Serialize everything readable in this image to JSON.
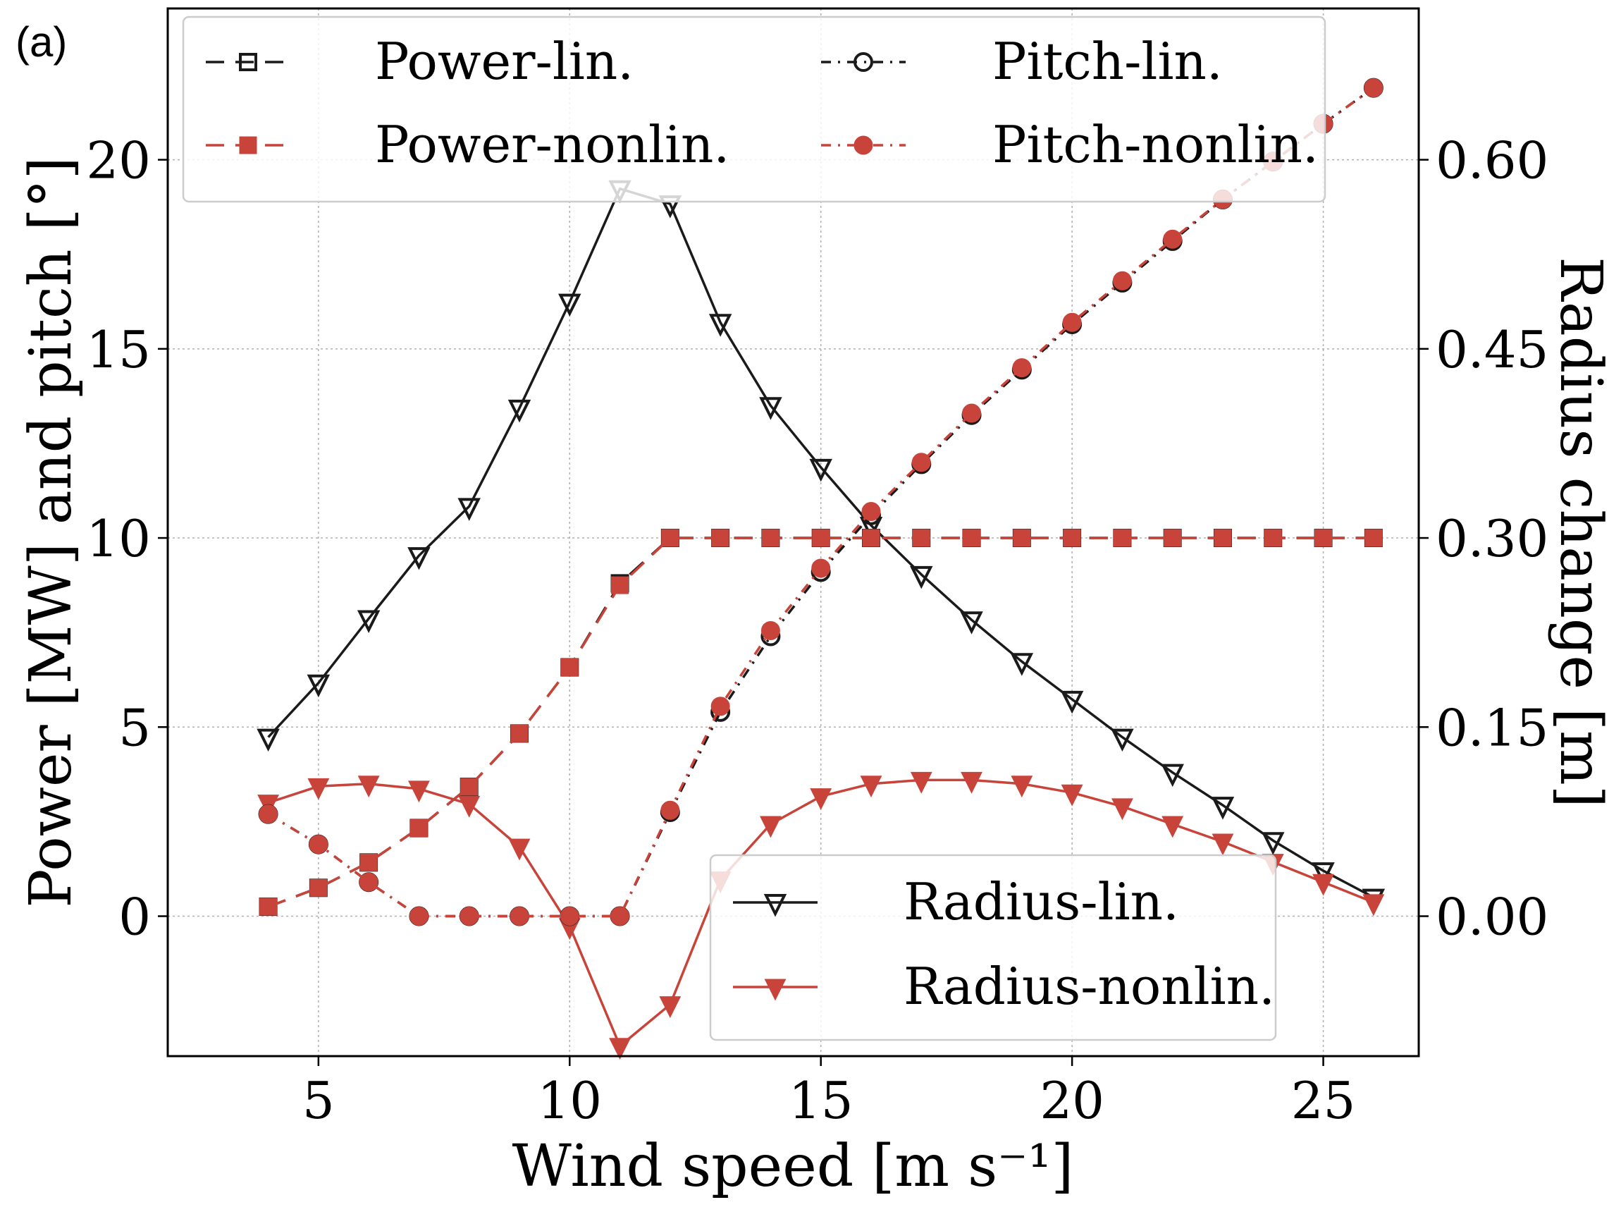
{
  "chart_data": {
    "panel_label": "(a)",
    "type": "line",
    "xlabel": "Wind speed [m s⁻¹]",
    "ylabel_left": "Power [MW] and pitch [°]",
    "ylabel_right": "Radius change [m]",
    "xlim": [
      2.0,
      26.9
    ],
    "ylim_left": [
      -3.7,
      24.0
    ],
    "ylim_right": [
      -0.111,
      0.72
    ],
    "xticks": [
      5,
      10,
      15,
      20,
      25
    ],
    "yticks_left": [
      0,
      5,
      10,
      15,
      20
    ],
    "yticks_right": [
      0.0,
      0.15,
      0.3,
      0.45,
      0.6
    ],
    "yticks_right_labels": [
      "0.00",
      "0.15",
      "0.30",
      "0.45",
      "0.60"
    ],
    "grid": true,
    "legend_top_placement": "top",
    "legend_bottom_placement": "lower-right",
    "colors": {
      "lin": "#1a1a1a",
      "nonlin": "#c8443a"
    },
    "x": [
      4,
      5,
      6,
      7,
      8,
      9,
      10,
      11,
      12,
      13,
      14,
      15,
      16,
      17,
      18,
      19,
      20,
      21,
      22,
      23,
      24,
      25,
      26
    ],
    "series": [
      {
        "name": "Power-lin.",
        "axis": "left",
        "color_key": "lin",
        "style": "dashed",
        "marker": "square-open",
        "values": [
          0.25,
          0.75,
          1.42,
          2.33,
          3.42,
          4.83,
          6.58,
          8.8,
          10,
          10,
          10,
          10,
          10,
          10,
          10,
          10,
          10,
          10,
          10,
          10,
          10,
          10,
          10
        ]
      },
      {
        "name": "Power-nonlin.",
        "axis": "left",
        "color_key": "nonlin",
        "style": "dashed",
        "marker": "square-filled",
        "values": [
          0.25,
          0.75,
          1.42,
          2.33,
          3.42,
          4.83,
          6.58,
          8.75,
          10,
          10,
          10,
          10,
          10,
          10,
          10,
          10,
          10,
          10,
          10,
          10,
          10,
          10,
          10
        ]
      },
      {
        "name": "Pitch-lin.",
        "axis": "left",
        "color_key": "lin",
        "style": "dashdot",
        "marker": "circle-open",
        "values": [
          2.7,
          1.9,
          0.9,
          0.0,
          0.0,
          0.0,
          0.0,
          0.0,
          2.75,
          5.4,
          7.4,
          9.1,
          10.6,
          11.95,
          13.25,
          14.45,
          15.65,
          16.75,
          17.85,
          18.95,
          19.95,
          20.95,
          21.9
        ]
      },
      {
        "name": "Pitch-nonlin.",
        "axis": "left",
        "color_key": "nonlin",
        "style": "dashdot",
        "marker": "circle-filled",
        "values": [
          2.7,
          1.9,
          0.9,
          0.0,
          0.0,
          0.0,
          0.0,
          0.0,
          2.8,
          5.55,
          7.55,
          9.2,
          10.7,
          12.0,
          13.3,
          14.5,
          15.7,
          16.8,
          17.9,
          18.95,
          19.95,
          20.95,
          21.9
        ]
      },
      {
        "name": "Radius-lin.",
        "axis": "right",
        "color_key": "lin",
        "style": "solid",
        "marker": "triangle-down-open",
        "values": [
          0.142,
          0.185,
          0.236,
          0.286,
          0.325,
          0.403,
          0.487,
          0.577,
          0.565,
          0.471,
          0.405,
          0.356,
          0.31,
          0.271,
          0.235,
          0.202,
          0.172,
          0.142,
          0.114,
          0.088,
          0.06,
          0.036,
          0.015
        ]
      },
      {
        "name": "Radius-nonlin.",
        "axis": "right",
        "color_key": "nonlin",
        "style": "solid",
        "marker": "triangle-down-filled",
        "values": [
          0.09,
          0.103,
          0.105,
          0.101,
          0.089,
          0.055,
          -0.008,
          -0.103,
          -0.07,
          0.029,
          0.073,
          0.095,
          0.105,
          0.108,
          0.108,
          0.105,
          0.098,
          0.087,
          0.073,
          0.059,
          0.043,
          0.027,
          0.011
        ]
      }
    ]
  }
}
